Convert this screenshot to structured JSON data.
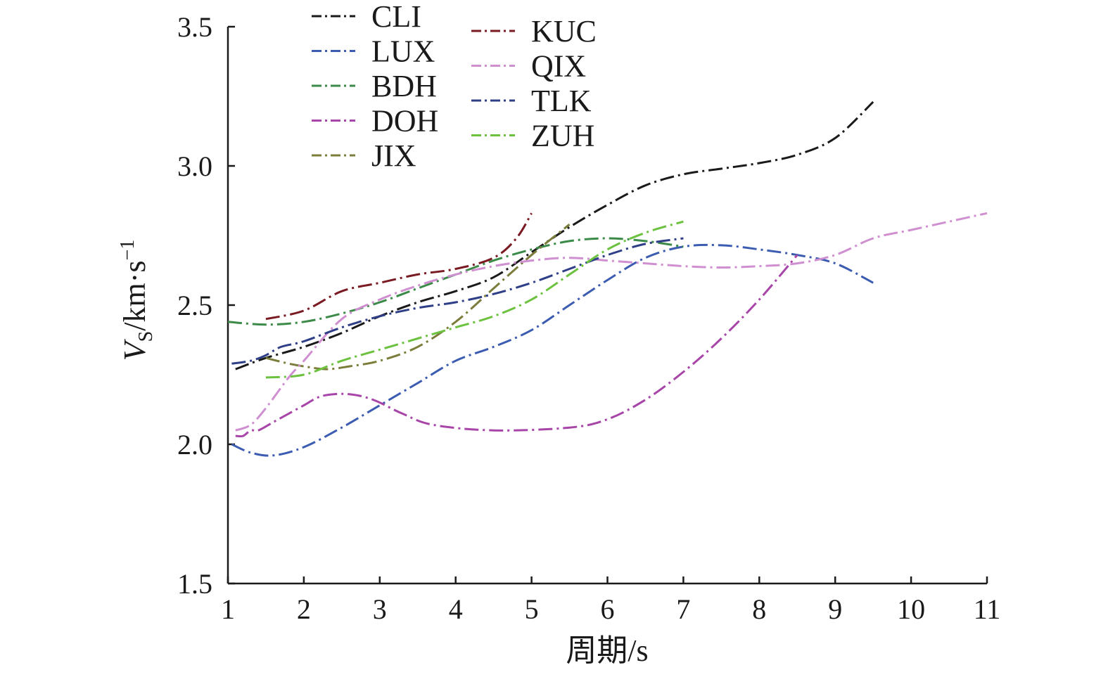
{
  "chart_data": {
    "type": "line",
    "title": "",
    "xlabel": "周期/s",
    "ylabel": {
      "main": "V",
      "sub": "S",
      "unit": "/km·s",
      "sup": "−1"
    },
    "xlim": [
      1,
      11
    ],
    "ylim": [
      1.5,
      3.5
    ],
    "xticks": [
      1,
      2,
      3,
      4,
      5,
      6,
      7,
      8,
      9,
      10,
      11
    ],
    "xtick_labels": [
      "1",
      "2",
      "3",
      "4",
      "5",
      "6",
      "7",
      "8",
      "9",
      "10",
      "11"
    ],
    "yticks": [
      1.5,
      2.0,
      2.5,
      3.0,
      3.5
    ],
    "ytick_labels": [
      "1.5",
      "2.0",
      "2.5",
      "3.0",
      "3.5"
    ],
    "grid": false,
    "legend_position": "top-left, two columns",
    "series": [
      {
        "name": "CLI",
        "color": "#1a1a1a",
        "x": [
          1.1,
          1.5,
          2.0,
          2.5,
          3.0,
          3.5,
          4.0,
          4.5,
          5.0,
          5.5,
          6.0,
          6.5,
          7.0,
          7.5,
          8.0,
          8.5,
          9.0,
          9.5
        ],
        "y": [
          2.27,
          2.31,
          2.35,
          2.4,
          2.46,
          2.51,
          2.55,
          2.6,
          2.69,
          2.78,
          2.86,
          2.93,
          2.97,
          2.99,
          3.01,
          3.04,
          3.1,
          3.23
        ]
      },
      {
        "name": "LUX",
        "color": "#3b5cb0",
        "x": [
          1.05,
          1.3,
          1.6,
          2.0,
          2.5,
          3.0,
          3.5,
          4.0,
          4.5,
          5.0,
          5.5,
          6.0,
          6.5,
          7.0,
          7.5,
          8.0,
          8.5,
          9.0,
          9.5
        ],
        "y": [
          2.0,
          1.97,
          1.96,
          1.99,
          2.06,
          2.14,
          2.22,
          2.3,
          2.35,
          2.41,
          2.5,
          2.59,
          2.67,
          2.71,
          2.715,
          2.7,
          2.68,
          2.65,
          2.58
        ]
      },
      {
        "name": "BDH",
        "color": "#3b8a48",
        "x": [
          1.0,
          1.5,
          2.0,
          2.5,
          3.0,
          3.5,
          4.0,
          4.5,
          5.0,
          5.5,
          6.0,
          6.5,
          7.0
        ],
        "y": [
          2.44,
          2.43,
          2.44,
          2.47,
          2.51,
          2.56,
          2.61,
          2.66,
          2.7,
          2.73,
          2.74,
          2.73,
          2.71
        ]
      },
      {
        "name": "DOH",
        "color": "#a845a8",
        "x": [
          1.1,
          1.2,
          1.3,
          1.4,
          1.6,
          1.8,
          2.0,
          2.2,
          2.4,
          2.6,
          2.8,
          3.0,
          3.3,
          3.7,
          4.5,
          5.5,
          6.0,
          6.5,
          7.0,
          7.5,
          8.0,
          8.5
        ],
        "y": [
          2.03,
          2.03,
          2.05,
          2.05,
          2.08,
          2.11,
          2.14,
          2.17,
          2.18,
          2.18,
          2.17,
          2.15,
          2.11,
          2.07,
          2.05,
          2.06,
          2.09,
          2.16,
          2.26,
          2.38,
          2.52,
          2.68
        ]
      },
      {
        "name": "JIX",
        "color": "#7b7d3a",
        "x": [
          1.5,
          1.8,
          2.0,
          2.3,
          2.6,
          3.0,
          3.5,
          4.0,
          4.5,
          5.0,
          5.5
        ],
        "y": [
          2.31,
          2.29,
          2.28,
          2.27,
          2.28,
          2.3,
          2.35,
          2.44,
          2.56,
          2.68,
          2.79
        ]
      },
      {
        "name": "KUC",
        "color": "#7a1a22",
        "x": [
          1.5,
          2.0,
          2.5,
          3.0,
          3.5,
          4.0,
          4.5,
          4.8,
          5.0
        ],
        "y": [
          2.45,
          2.48,
          2.55,
          2.58,
          2.61,
          2.63,
          2.67,
          2.74,
          2.83
        ]
      },
      {
        "name": "QIX",
        "color": "#cf8fd0",
        "x": [
          1.1,
          1.3,
          1.5,
          1.8,
          2.0,
          2.5,
          3.0,
          3.5,
          4.0,
          4.5,
          5.0,
          5.5,
          6.0,
          6.5,
          7.0,
          7.5,
          8.0,
          8.5,
          9.0,
          9.5,
          10.0,
          10.5,
          11.0
        ],
        "y": [
          2.05,
          2.07,
          2.13,
          2.24,
          2.3,
          2.45,
          2.52,
          2.57,
          2.61,
          2.64,
          2.66,
          2.67,
          2.66,
          2.65,
          2.64,
          2.635,
          2.64,
          2.65,
          2.68,
          2.74,
          2.77,
          2.8,
          2.83
        ]
      },
      {
        "name": "TLK",
        "color": "#2f3f87",
        "x": [
          1.05,
          1.3,
          1.5,
          1.7,
          2.0,
          2.5,
          3.0,
          3.5,
          4.0,
          4.5,
          5.0,
          5.5,
          6.0,
          6.5,
          7.0
        ],
        "y": [
          2.29,
          2.3,
          2.32,
          2.35,
          2.37,
          2.42,
          2.46,
          2.49,
          2.51,
          2.54,
          2.58,
          2.63,
          2.68,
          2.72,
          2.74
        ]
      },
      {
        "name": "ZUH",
        "color": "#6cc23f",
        "x": [
          1.5,
          2.0,
          2.5,
          3.0,
          3.5,
          4.0,
          4.5,
          5.0,
          5.5,
          6.0,
          6.5,
          7.0
        ],
        "y": [
          2.24,
          2.25,
          2.3,
          2.34,
          2.38,
          2.42,
          2.46,
          2.52,
          2.61,
          2.7,
          2.76,
          2.8
        ]
      }
    ]
  }
}
